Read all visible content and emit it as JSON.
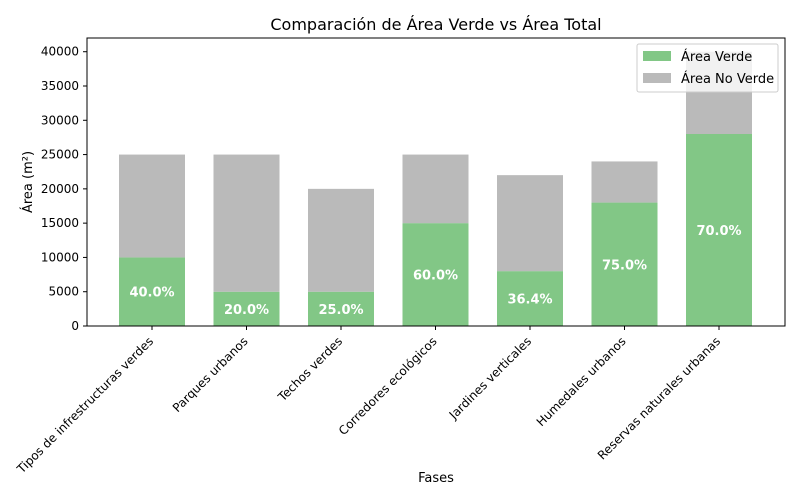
{
  "chart_data": {
    "type": "bar",
    "stacked": true,
    "title": "Comparación de Área Verde vs Área Total",
    "xlabel": "Fases",
    "ylabel": "Área (m²)",
    "ylim": [
      0,
      42000
    ],
    "yticks": [
      0,
      5000,
      10000,
      15000,
      20000,
      25000,
      30000,
      35000,
      40000
    ],
    "grid": false,
    "legend_position": "top-right",
    "categories": [
      "Tipos de infrestructuras verdes",
      "Parques urbanos",
      "Techos verdes",
      "Corredores ecológicos",
      "Jardines verticales",
      "Humedales urbanos",
      "Reservas naturales urbanas"
    ],
    "series": [
      {
        "name": "Área Verde",
        "color": "#82c786",
        "values": [
          10000,
          5000,
          5000,
          15000,
          8000,
          18000,
          28000
        ]
      },
      {
        "name": "Área No Verde",
        "color": "#bababa",
        "values": [
          15000,
          20000,
          15000,
          10000,
          14000,
          6000,
          12000
        ]
      }
    ],
    "bar_labels": [
      "40.0%",
      "20.0%",
      "25.0%",
      "60.0%",
      "36.4%",
      "75.0%",
      "70.0%"
    ]
  }
}
